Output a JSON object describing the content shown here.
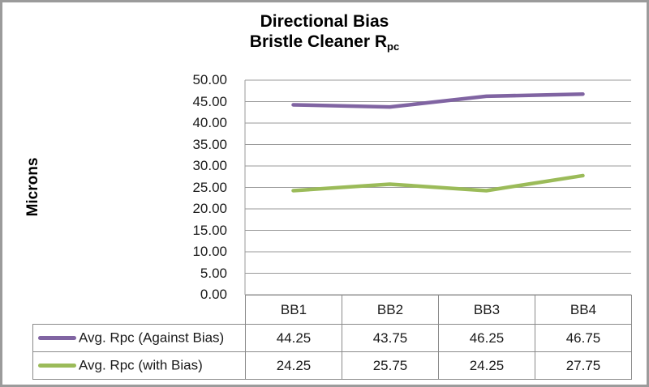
{
  "window": {
    "background": "#ffffff",
    "border_color": "#9b9b9b"
  },
  "chart": {
    "title_line1": "Directional Bias",
    "title_line2_main": "Bristle Cleaner R",
    "title_line2_sub": "pc",
    "y_axis_title": "Microns"
  },
  "chart_data": {
    "type": "line",
    "title": "Directional Bias\nBristle Cleaner Rpc",
    "xlabel": "",
    "ylabel": "Microns",
    "categories": [
      "BB1",
      "BB2",
      "BB3",
      "BB4"
    ],
    "series": [
      {
        "name": "Avg. Rpc (Against Bias)",
        "color": "#8064A2",
        "values": [
          44.25,
          43.75,
          46.25,
          46.75
        ]
      },
      {
        "name": "Avg. Rpc (with Bias)",
        "color": "#9BBB59",
        "values": [
          24.25,
          25.75,
          24.25,
          27.75
        ]
      }
    ],
    "ylim": [
      0,
      50
    ],
    "ytick_step": 5,
    "ytick_format_decimals": 2,
    "grid": true,
    "gridline_color": "#9a9a9a",
    "axis_line_color": "#9a9a9a",
    "line_width": 4.5,
    "legend_position": "left-of-data-table",
    "data_table_shown": true
  }
}
